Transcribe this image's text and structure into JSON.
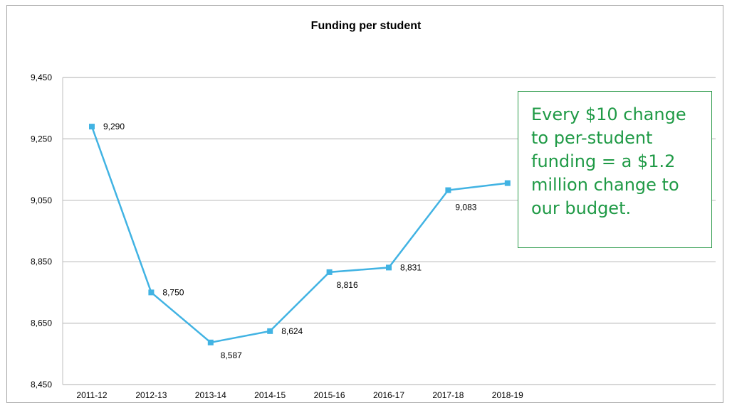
{
  "chart_data": {
    "type": "line",
    "title": "Funding per student",
    "xlabel": "",
    "ylabel": "",
    "ylim": [
      8450,
      9450
    ],
    "yticks": [
      "9,450",
      "9,250",
      "9,050",
      "8,850",
      "8,650",
      "8,450"
    ],
    "categories": [
      "2011-12",
      "2012-13",
      "2013-14",
      "2014-15",
      "2015-16",
      "2016-17",
      "2017-18",
      "2018-19"
    ],
    "series": [
      {
        "values": [
          9290,
          8750,
          8587,
          8624,
          8816,
          8831,
          9083,
          9106
        ],
        "labels": [
          "9,290",
          "8,750",
          "8,587",
          "8,624",
          "8,816",
          "8,831",
          "9,083",
          ""
        ],
        "color": "#41b3e3"
      }
    ],
    "grid": true,
    "legend": "none",
    "annotation": "Every $10 change to per-student funding = a $1.2 million change to our budget."
  },
  "callout_lines": [
    "Every $10 change",
    "to per-student",
    "funding = a $1.2",
    "million change to",
    "our budget."
  ],
  "colors": {
    "line": "#41b3e3",
    "grid": "#bfbfbf",
    "callout": "#1f9a46"
  }
}
